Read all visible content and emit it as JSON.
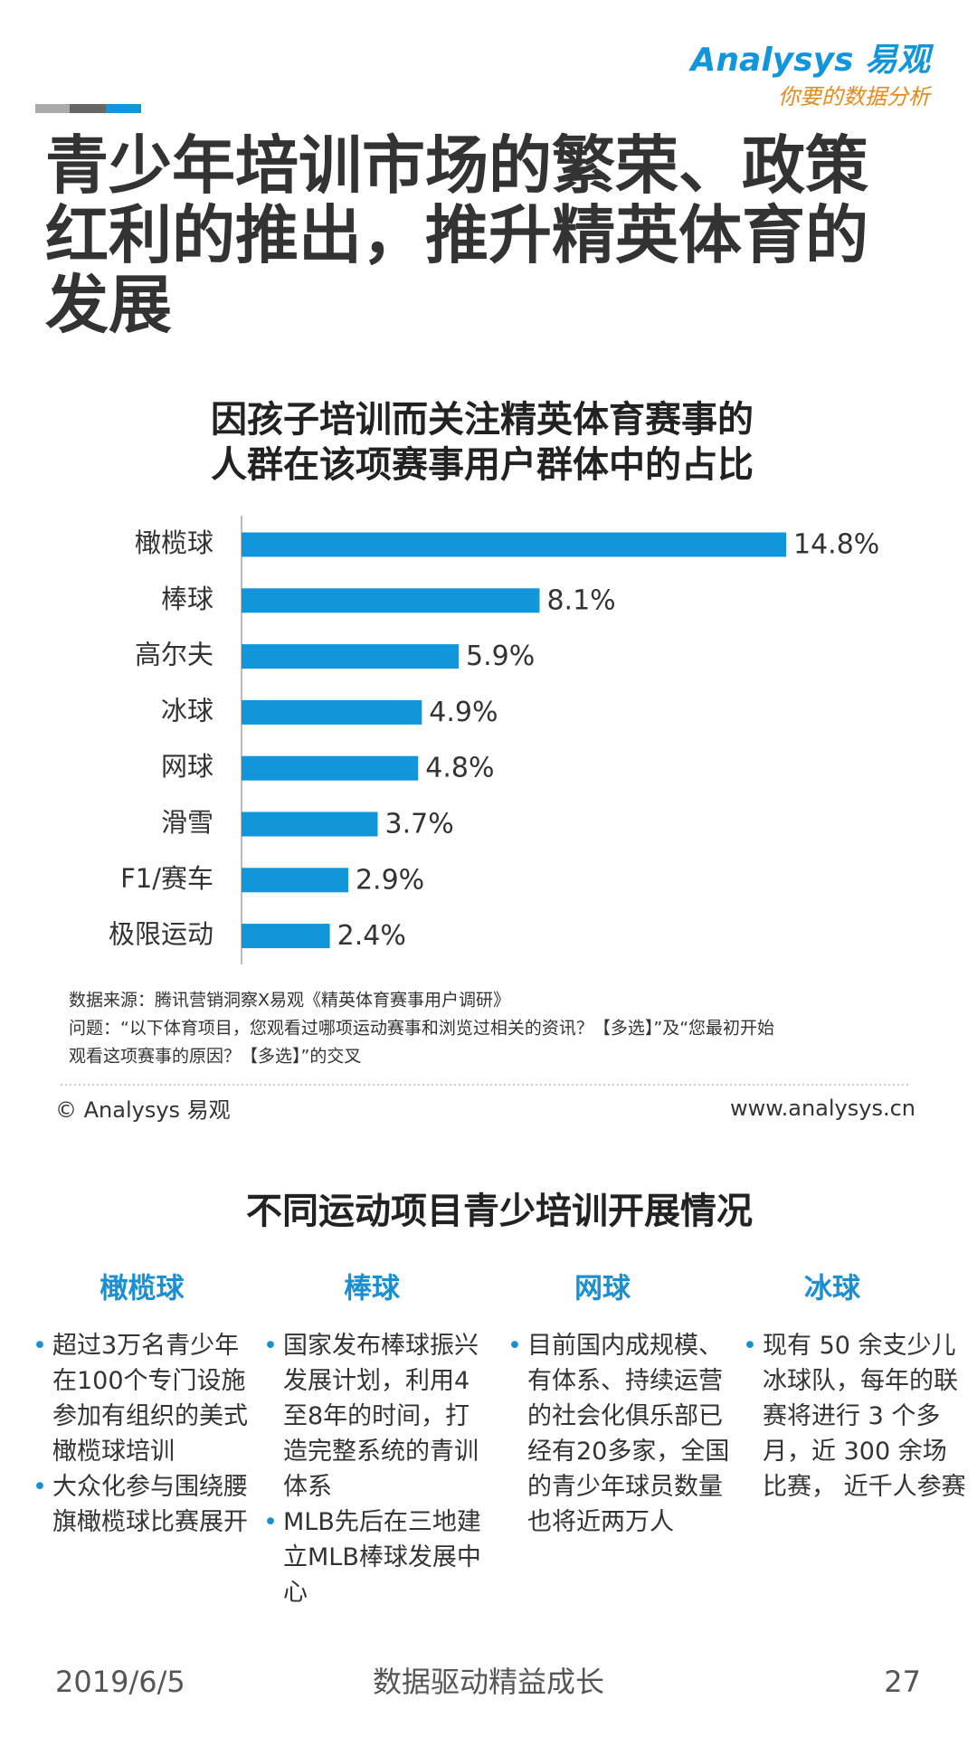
{
  "header": {
    "logo": "Analysys 易观",
    "slogan": "你要的数据分析",
    "title_lines": [
      "青少年培训市场的繁荣、政策",
      "红利的推出，推升精英体育的",
      "发展"
    ]
  },
  "chart_data": {
    "type": "bar",
    "orientation": "horizontal",
    "title_lines": [
      "因孩子培训而关注精英体育赛事的",
      "人群在该项赛事用户群体中的占比"
    ],
    "categories": [
      "橄榄球",
      "棒球",
      "高尔夫",
      "冰球",
      "网球",
      "滑雪",
      "F1/赛车",
      "极限运动"
    ],
    "values": [
      14.8,
      8.1,
      5.9,
      4.9,
      4.8,
      3.7,
      2.9,
      2.4
    ],
    "value_labels": [
      "14.8%",
      "8.1%",
      "5.9%",
      "4.9%",
      "4.8%",
      "3.7%",
      "2.9%",
      "2.4%"
    ],
    "color": "#1296db"
  },
  "notes": [
    "数据来源：腾讯营销洞察X易观《精英体育赛事用户调研》",
    "问题：“以下体育项目，您观看过哪项运动赛事和浏览过相关的资讯？【多选】”及“您最初开始",
    "观看这项赛事的原因？【多选】”的交叉"
  ],
  "copyright": "© Analysys 易观",
  "website": "www.analysys.cn",
  "section": {
    "title": "不同运动项目青少培训开展情况",
    "columns": [
      {
        "title": "橄榄球",
        "bullets": [
          "超过3万名青少年在100个专门设施参加有组织的美式橄榄球培训",
          "大众化参与围绕腰旗橄榄球比赛展开"
        ]
      },
      {
        "title": "棒球",
        "bullets": [
          "国家发布棒球振兴发展计划，利用4至8年的时间，打造完整系统的青训体系",
          "MLB先后在三地建立MLB棒球发展中心"
        ]
      },
      {
        "title": "网球",
        "bullets": [
          "目前国内成规模、有体系、持续运营的社会化俱乐部已经有20多家，全国的青少年球员数量也将近两万人"
        ]
      },
      {
        "title": "冰球",
        "bullets": [
          "现有 50 余支少儿冰球队，每年的联赛将进行 3 个多月，近 300 余场比赛， 近千人参赛"
        ]
      }
    ]
  },
  "footer": {
    "date": "2019/6/5",
    "slogan": "数据驱动精益成长",
    "page": "27"
  }
}
